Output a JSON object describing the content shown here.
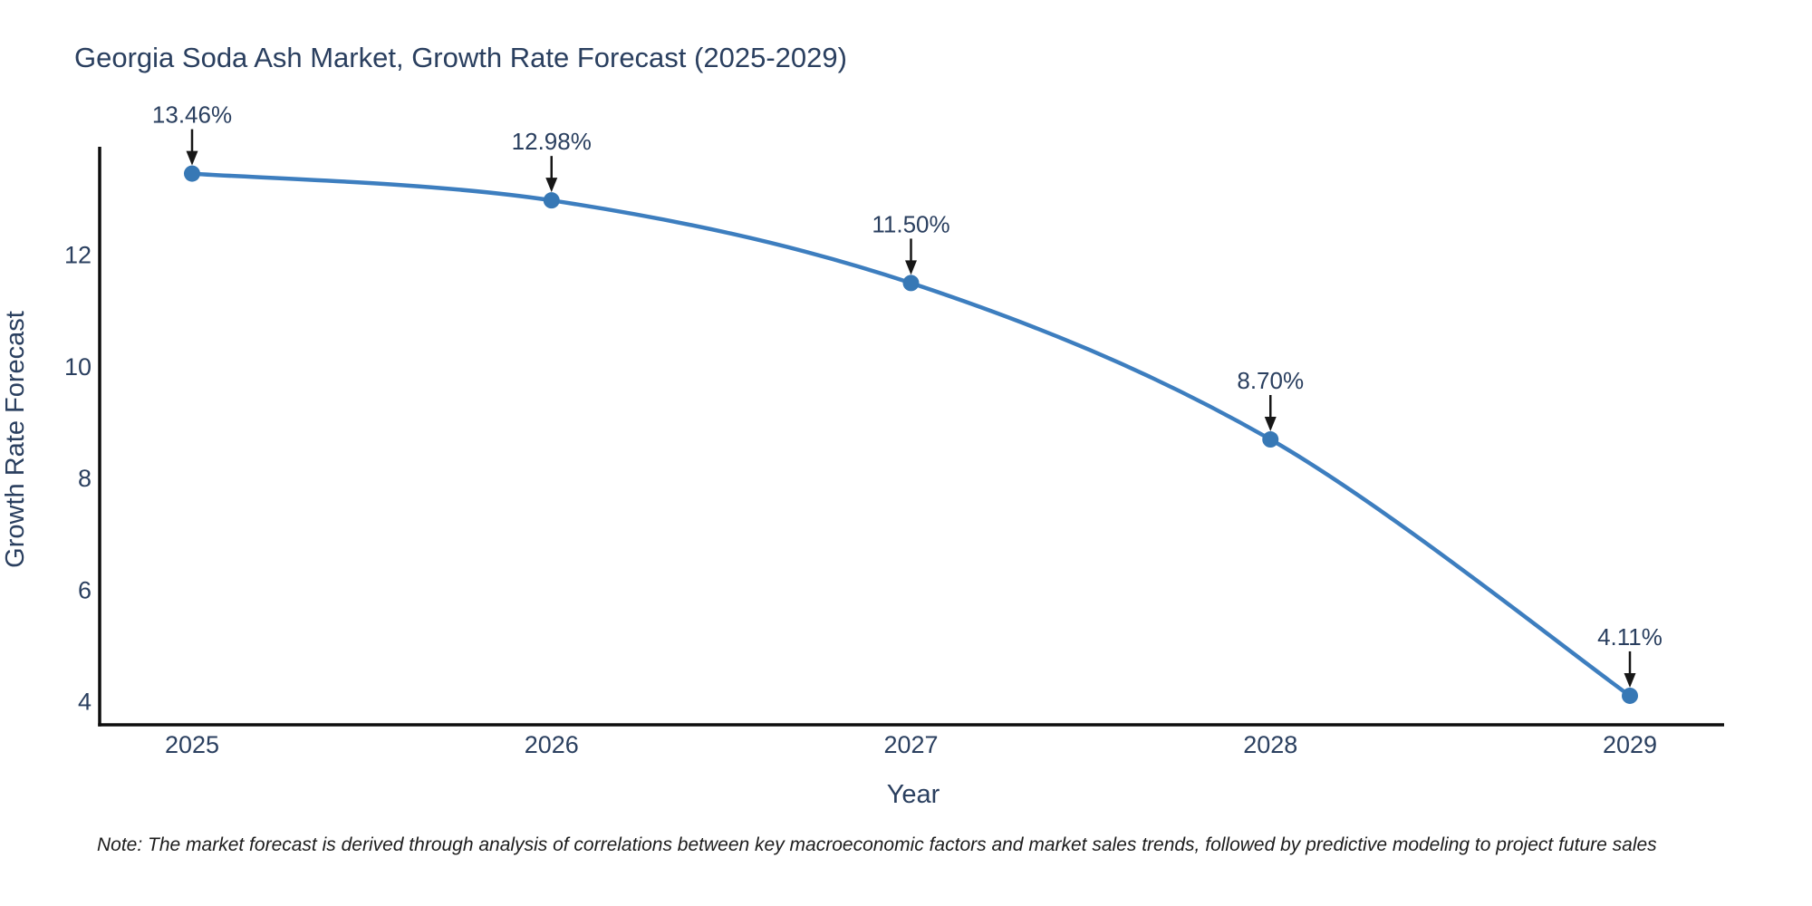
{
  "title": "Georgia Soda Ash Market, Growth Rate Forecast (2025-2029)",
  "note": "Note: The market forecast is derived through analysis of correlations between key macroeconomic factors and market sales trends, followed by predictive modeling to project future sales",
  "colors": {
    "accent": "#3d7ebf",
    "marker": "#3778b5",
    "text": "#2a3f5f",
    "axis": "#0d0d0d",
    "arrow": "#171717",
    "background": "#ffffff"
  },
  "chart_data": {
    "type": "line",
    "title": "Georgia Soda Ash Market, Growth Rate Forecast (2025-2029)",
    "xlabel": "Year",
    "ylabel": "Growth Rate Forecast",
    "categories": [
      "2025",
      "2026",
      "2027",
      "2028",
      "2029"
    ],
    "series": [
      {
        "name": "Growth Rate Forecast",
        "values": [
          13.46,
          12.98,
          11.5,
          8.7,
          4.11
        ]
      }
    ],
    "point_labels": [
      "13.46%",
      "12.98%",
      "11.50%",
      "8.70%",
      "4.11%"
    ],
    "annotations_have_arrows": true,
    "yticks": [
      4,
      6,
      8,
      10,
      12
    ],
    "ylim": [
      3.59,
      13.94
    ],
    "grid": false,
    "legend_position": "none",
    "line_shape": "spline",
    "marker": "circle"
  }
}
